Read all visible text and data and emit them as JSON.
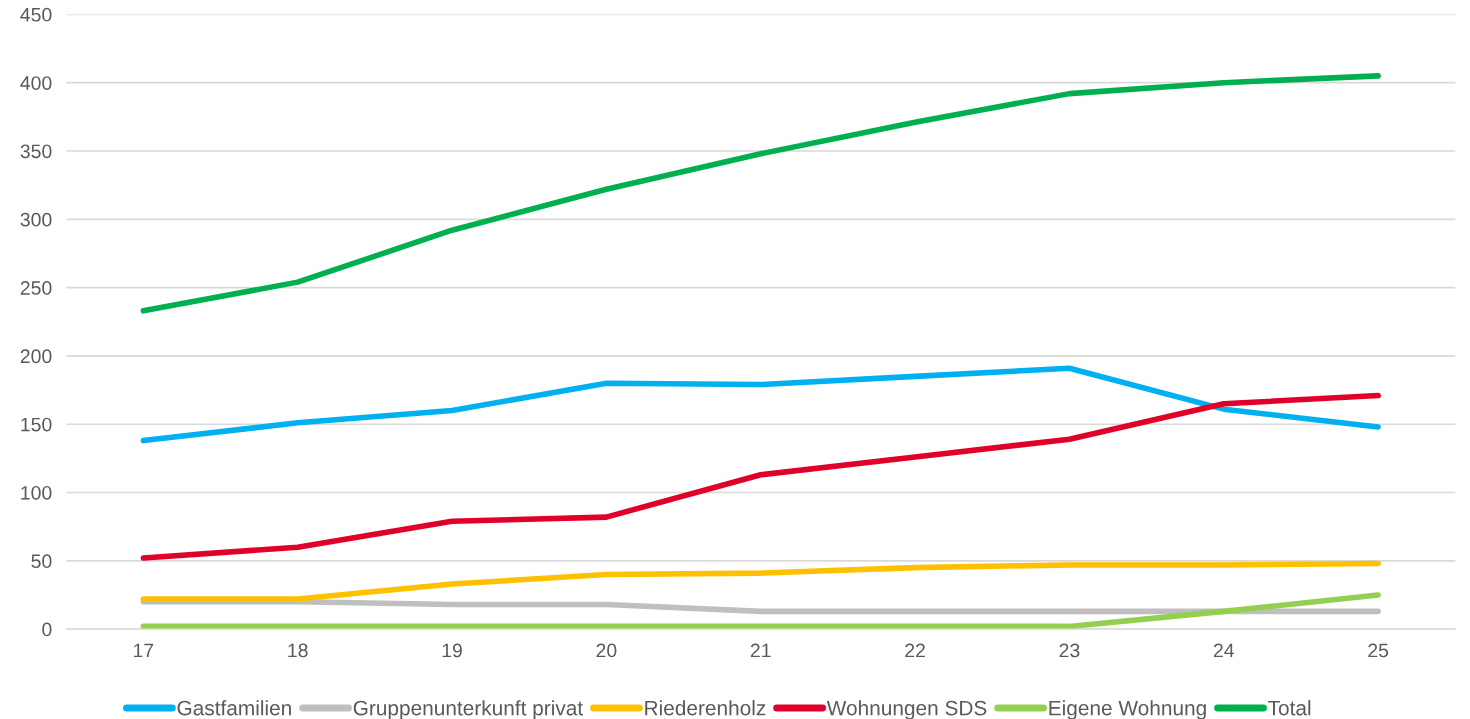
{
  "chart_data": {
    "type": "line",
    "categories": [
      "17",
      "18",
      "19",
      "20",
      "21",
      "22",
      "23",
      "24",
      "25"
    ],
    "series": [
      {
        "name": "Gastfamilien",
        "color": "#00b0f0",
        "values": [
          138,
          151,
          160,
          180,
          179,
          185,
          191,
          161,
          148
        ]
      },
      {
        "name": "Gruppenunterkunft privat",
        "color": "#bfbfbf",
        "values": [
          20,
          20,
          18,
          18,
          13,
          13,
          13,
          13,
          13
        ]
      },
      {
        "name": "Riederenholz",
        "color": "#ffc000",
        "values": [
          22,
          22,
          33,
          40,
          41,
          45,
          47,
          47,
          48
        ]
      },
      {
        "name": "Wohnungen SDS",
        "color": "#e0002a",
        "values": [
          52,
          60,
          79,
          82,
          113,
          126,
          139,
          165,
          171
        ]
      },
      {
        "name": "Eigene Wohnung",
        "color": "#92d050",
        "values": [
          2,
          2,
          2,
          2,
          2,
          2,
          2,
          13,
          25
        ]
      },
      {
        "name": "Total",
        "color": "#00b050",
        "values": [
          233,
          254,
          292,
          322,
          348,
          371,
          392,
          400,
          405
        ]
      }
    ],
    "ylim": [
      0,
      450
    ],
    "yticks": [
      0,
      50,
      100,
      150,
      200,
      250,
      300,
      350,
      400,
      450
    ],
    "grid": "y",
    "legend": "bottom",
    "marker": "none",
    "line_style": "solid"
  }
}
